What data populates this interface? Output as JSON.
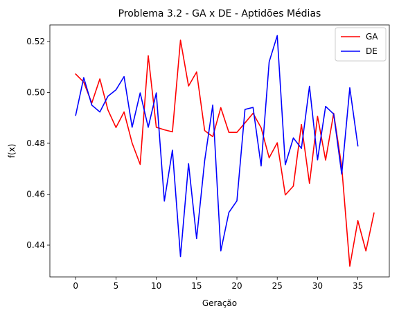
{
  "chart_data": {
    "type": "line",
    "title": "Problema 3.2 - GA x DE - Aptidões Médias",
    "xlabel": "Geração",
    "ylabel": "f(x)",
    "xlim": [
      -3.2,
      38.9
    ],
    "ylim": [
      0.4275,
      0.5265
    ],
    "xticks": [
      0,
      5,
      10,
      15,
      20,
      25,
      30,
      35
    ],
    "yticks": [
      0.44,
      0.46,
      0.48,
      0.5,
      0.52
    ],
    "ytick_labels": [
      "0.44",
      "0.46",
      "0.48",
      "0.50",
      "0.52"
    ],
    "legend_position": "upper right",
    "grid": false,
    "series": [
      {
        "name": "GA",
        "color": "#ff0000",
        "x": [
          0,
          1,
          2,
          3,
          4,
          5,
          6,
          7,
          8,
          9,
          10,
          11,
          12,
          13,
          14,
          15,
          16,
          17,
          18,
          19,
          20,
          21,
          22,
          23,
          24,
          25,
          26,
          27,
          28,
          29,
          30,
          31,
          32,
          33,
          34,
          35,
          36,
          37
        ],
        "values": [
          0.5072,
          0.504,
          0.4958,
          0.5053,
          0.4931,
          0.4862,
          0.4923,
          0.4801,
          0.4717,
          0.5144,
          0.4863,
          0.4853,
          0.4845,
          0.5205,
          0.5025,
          0.508,
          0.485,
          0.4826,
          0.494,
          0.4843,
          0.4843,
          0.488,
          0.4918,
          0.4861,
          0.4743,
          0.4802,
          0.4597,
          0.4632,
          0.4874,
          0.4642,
          0.4906,
          0.4734,
          0.4918,
          0.4707,
          0.4317,
          0.4496,
          0.4377,
          0.4526
        ]
      },
      {
        "name": "DE",
        "color": "#0000ff",
        "x": [
          0,
          1,
          2,
          3,
          4,
          5,
          6,
          7,
          8,
          9,
          10,
          11,
          12,
          13,
          14,
          15,
          16,
          17,
          18,
          19,
          20,
          21,
          22,
          23,
          24,
          25,
          26,
          27,
          28,
          29,
          30,
          31,
          32,
          33,
          34,
          35
        ],
        "values": [
          0.491,
          0.5058,
          0.495,
          0.4923,
          0.4985,
          0.501,
          0.5062,
          0.4863,
          0.4998,
          0.4863,
          0.4998,
          0.4573,
          0.4773,
          0.4355,
          0.472,
          0.4426,
          0.4732,
          0.495,
          0.4377,
          0.4528,
          0.4574,
          0.4933,
          0.4941,
          0.4711,
          0.512,
          0.5223,
          0.4716,
          0.4821,
          0.478,
          0.5024,
          0.4735,
          0.4945,
          0.4915,
          0.4679,
          0.5018,
          0.479
        ]
      }
    ]
  }
}
